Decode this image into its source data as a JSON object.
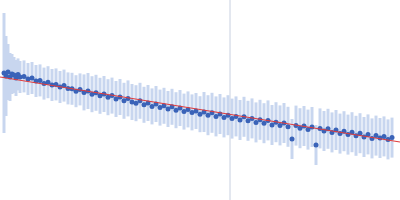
{
  "chart_data": {
    "type": "scatter",
    "xlim": [
      0,
      100
    ],
    "ylim": [
      0,
      100
    ],
    "xticks": [
      57.5
    ],
    "yticks": [],
    "grid": true,
    "tick_labels": false,
    "series": [
      {
        "type": "scatter",
        "color": "#3a63b8",
        "marker": "circle",
        "x": [
          1,
          1.5,
          2,
          2.5,
          3,
          3.5,
          4,
          4.5,
          5,
          6,
          7,
          8,
          9,
          10,
          11,
          12,
          13,
          14,
          15,
          16,
          17,
          18,
          19,
          20,
          21,
          22,
          23,
          24,
          25,
          26,
          27,
          28,
          29,
          30,
          31,
          32,
          33,
          34,
          35,
          36,
          37,
          38,
          39,
          40,
          41,
          42,
          43,
          44,
          45,
          46,
          47,
          48,
          49,
          50,
          51,
          52,
          53,
          54,
          55,
          56,
          57,
          58,
          59,
          60,
          61,
          62,
          63,
          64,
          65,
          66,
          67,
          68,
          69,
          70,
          71,
          72,
          73,
          74,
          75,
          76,
          77,
          78,
          79,
          80,
          81,
          82,
          83,
          84,
          85,
          86,
          87,
          88,
          89,
          90,
          91,
          92,
          93,
          94,
          95,
          96,
          97,
          98
        ],
        "values": [
          63.5,
          62,
          64,
          61.5,
          63,
          62.5,
          61,
          62.8,
          61.5,
          61.8,
          60.5,
          61,
          59.5,
          59.8,
          58.2,
          58.9,
          57.5,
          57.8,
          56.5,
          57.2,
          55.8,
          55.6,
          54.4,
          55.3,
          53.8,
          54.5,
          52.9,
          53.6,
          52.1,
          53,
          51.4,
          52.2,
          50.5,
          51.5,
          49.6,
          50.8,
          49,
          48.4,
          49.6,
          47.6,
          48.5,
          46.8,
          48,
          46.2,
          47.1,
          45.5,
          46.6,
          44.9,
          46,
          44.2,
          45.3,
          43.8,
          44.5,
          42.9,
          44,
          42.4,
          43.6,
          41.8,
          43,
          41.3,
          42.4,
          40.7,
          41.8,
          40,
          41.6,
          39.6,
          40.8,
          38.8,
          40.1,
          38.4,
          39.8,
          37.5,
          38.9,
          37.3,
          38.5,
          36.6,
          30.5,
          37.2,
          35.9,
          37,
          35.2,
          36.5,
          27.5,
          35.8,
          34.5,
          35.6,
          33.8,
          35,
          33.2,
          34.4,
          32.7,
          33.9,
          32.1,
          33.4,
          31.5,
          32.8,
          30.8,
          32.2,
          31,
          31.8,
          30.3,
          31.2
        ],
        "errors": [
          30,
          20,
          14,
          12,
          10,
          9,
          9,
          8,
          8,
          8,
          8,
          8,
          8,
          8,
          8,
          8,
          8,
          8,
          8,
          8,
          8,
          8,
          8,
          8,
          9,
          9,
          9,
          9,
          9,
          9,
          9,
          9,
          9,
          9,
          9,
          9,
          9,
          9,
          9,
          9,
          9,
          9,
          9,
          9,
          9,
          9,
          9,
          9,
          9,
          9,
          9,
          9,
          9,
          9,
          10,
          10,
          10,
          10,
          10,
          10,
          10,
          10,
          10,
          10,
          10,
          10,
          10,
          10,
          10,
          10,
          10,
          10,
          10,
          10,
          10,
          10,
          10,
          10,
          10,
          10,
          10,
          10,
          10,
          10,
          10,
          10,
          10,
          10,
          10,
          10,
          10,
          10,
          10,
          10,
          10,
          10,
          10,
          10,
          10,
          10,
          10,
          10
        ]
      },
      {
        "type": "line",
        "color": "#e03c3c",
        "line_style": "solid",
        "x": [
          0,
          100
        ],
        "values": [
          61.5,
          29
        ]
      }
    ]
  }
}
